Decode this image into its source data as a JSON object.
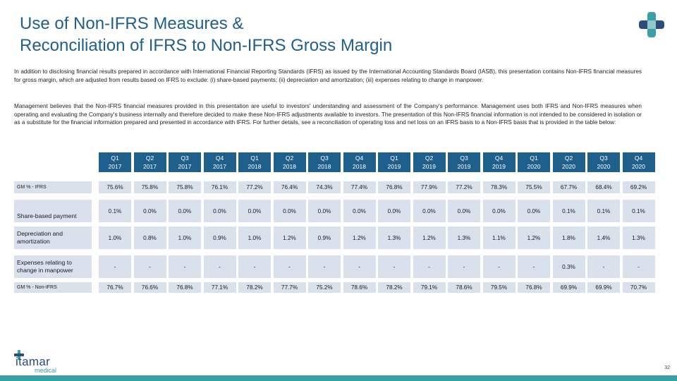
{
  "title": {
    "line1": "Use of Non-IFRS Measures &",
    "line2": "Reconciliation of IFRS to Non-IFRS Gross Margin"
  },
  "paragraphs": [
    "In addition to disclosing financial results prepared in accordance with International Financial Reporting Standards (IFRS) as issued by the International Accounting Standards Board (IASB), this presentation contains Non-IFRS financial measures for gross margin, which are adjusted from results based on IFRS to exclude: (i) share-based payments; (ii) depreciation and amortization; (iii) expenses relating to change in manpower.",
    "Management believes that the Non-IFRS financial measures provided in this presentation are useful to investors' understanding and assessment of the Company's performance. Management uses both IFRS and Non-IFRS measures when operating and evaluating the Company's business internally and therefore decided to make these Non-IFRS adjustments available to investors. The presentation of this Non-IFRS financial information is not intended to be considered in isolation or as a substitute for the financial information prepared and presented in accordance with IFRS. For further details, see a reconciliation of operating loss and net loss on an IFRS basis to a Non-IFRS basis that is provided in the table below:"
  ],
  "table": {
    "columns": [
      {
        "q": "Q1",
        "y": "2017"
      },
      {
        "q": "Q2",
        "y": "2017"
      },
      {
        "q": "Q3",
        "y": "2017"
      },
      {
        "q": "Q4",
        "y": "2017"
      },
      {
        "q": "Q1",
        "y": "2018"
      },
      {
        "q": "Q2",
        "y": "2018"
      },
      {
        "q": "Q3",
        "y": "2018"
      },
      {
        "q": "Q4",
        "y": "2018"
      },
      {
        "q": "Q1",
        "y": "2019"
      },
      {
        "q": "Q2",
        "y": "2019"
      },
      {
        "q": "Q3",
        "y": "2019"
      },
      {
        "q": "Q4",
        "y": "2019"
      },
      {
        "q": "Q1",
        "y": "2020"
      },
      {
        "q": "Q2",
        "y": "2020"
      },
      {
        "q": "Q3",
        "y": "2020"
      },
      {
        "q": "Q4",
        "y": "2020"
      }
    ],
    "rows": [
      {
        "label": "GM % - IFRS",
        "values": [
          "75.6%",
          "75.8%",
          "75.8%",
          "76.1%",
          "77.2%",
          "76.4%",
          "74.3%",
          "77.4%",
          "76.8%",
          "77.9%",
          "77.2%",
          "78.3%",
          "75.5%",
          "67.7%",
          "68.4%",
          "69.2%"
        ]
      },
      {
        "label": "Share-based payment",
        "values": [
          "0.1%",
          "0.0%",
          "0.0%",
          "0.0%",
          "0.0%",
          "0.0%",
          "0.0%",
          "0.0%",
          "0.0%",
          "0.0%",
          "0.0%",
          "0.0%",
          "0.0%",
          "0.1%",
          "0.1%",
          "0.1%"
        ]
      },
      {
        "label": "Depreciation and amortization",
        "values": [
          "1.0%",
          "0.8%",
          "1.0%",
          "0.9%",
          "1.0%",
          "1.2%",
          "0.9%",
          "1.2%",
          "1.3%",
          "1.2%",
          "1.3%",
          "1.1%",
          "1.2%",
          "1.8%",
          "1.4%",
          "1.3%"
        ]
      },
      {
        "label": "Expenses relating to change in manpower",
        "values": [
          "-",
          "-",
          "-",
          "-",
          "-",
          "-",
          "-",
          "-",
          "-",
          "-",
          "-",
          "-",
          "-",
          "0.3%",
          "-",
          "-"
        ]
      },
      {
        "label": "GM % - Non-IFRS",
        "values": [
          "76.7%",
          "76.6%",
          "76.8%",
          "77.1%",
          "78.2%",
          "77.7%",
          "75.2%",
          "78.6%",
          "78.2%",
          "79.1%",
          "78.6%",
          "79.5%",
          "76.8%",
          "69.9%",
          "69.9%",
          "70.7%"
        ]
      }
    ]
  },
  "footer": {
    "brand_name": "itamar",
    "brand_sub": "medical",
    "page_number": "32"
  },
  "colors": {
    "title": "#1f5f8b",
    "header_fill": "#1f5f8b",
    "cell_fill": "#d9e1ec",
    "footer_bar": "#3a9fa6"
  }
}
